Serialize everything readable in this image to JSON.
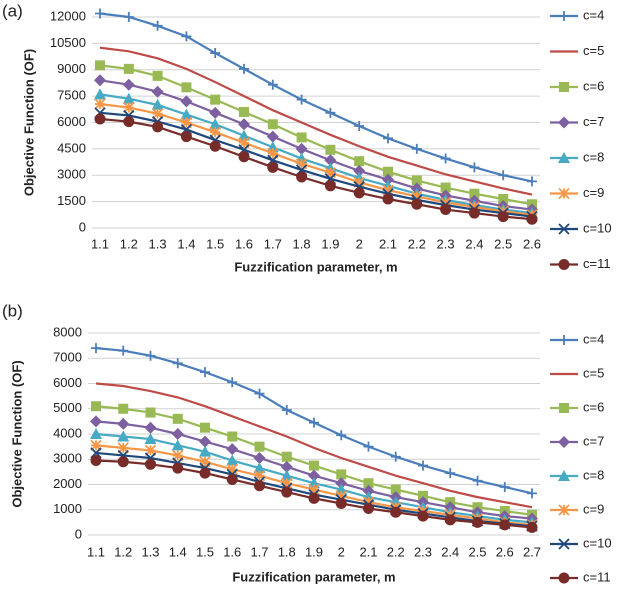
{
  "chart_data": [
    {
      "type": "line",
      "label": "(a)",
      "x_label": "Fuzzification parameter, m",
      "y_label": "Objective Function (OF)",
      "categories": [
        "1.1",
        "1.2",
        "1.3",
        "1.4",
        "1.5",
        "1.6",
        "1.7",
        "1.8",
        "1.9",
        "2",
        "2.1",
        "2.2",
        "2.3",
        "2.4",
        "2.5",
        "2.6"
      ],
      "ylim": [
        0,
        12000
      ],
      "yticks": [
        0,
        1500,
        3000,
        4500,
        6000,
        7500,
        9000,
        10500,
        12000
      ],
      "grid": true,
      "legend": "right",
      "series": [
        {
          "name": "c=4",
          "color": "#4a7ebb",
          "marker": "plus",
          "values": [
            12200,
            12000,
            11500,
            10900,
            9950,
            9050,
            8150,
            7300,
            6550,
            5800,
            5100,
            4500,
            3950,
            3450,
            3000,
            2650
          ]
        },
        {
          "name": "c=5",
          "color": "#be4b48",
          "marker": "none",
          "values": [
            10250,
            10050,
            9650,
            9050,
            8300,
            7500,
            6700,
            6000,
            5300,
            4650,
            4050,
            3550,
            3050,
            2650,
            2250,
            1900
          ]
        },
        {
          "name": "c=6",
          "color": "#98b954",
          "marker": "square",
          "values": [
            9250,
            9050,
            8650,
            8000,
            7300,
            6600,
            5900,
            5150,
            4450,
            3800,
            3200,
            2700,
            2300,
            1950,
            1650,
            1350
          ]
        },
        {
          "name": "c=7",
          "color": "#7d60a0",
          "marker": "diamond",
          "values": [
            8400,
            8150,
            7750,
            7200,
            6550,
            5900,
            5200,
            4500,
            3850,
            3250,
            2750,
            2250,
            1850,
            1550,
            1250,
            1050
          ]
        },
        {
          "name": "c=8",
          "color": "#46aac5",
          "marker": "triangle",
          "values": [
            7600,
            7350,
            7000,
            6450,
            5900,
            5250,
            4600,
            3950,
            3400,
            2850,
            2400,
            1950,
            1600,
            1300,
            1050,
            850
          ]
        },
        {
          "name": "c=9",
          "color": "#f79646",
          "marker": "asterisk",
          "values": [
            7050,
            6850,
            6500,
            6000,
            5450,
            4850,
            4250,
            3650,
            3150,
            2600,
            2150,
            1800,
            1450,
            1200,
            950,
            750
          ]
        },
        {
          "name": "c=10",
          "color": "#1f497d",
          "marker": "x",
          "values": [
            6550,
            6400,
            6050,
            5600,
            5000,
            4450,
            3850,
            3300,
            2800,
            2350,
            1950,
            1600,
            1300,
            1050,
            850,
            650
          ]
        },
        {
          "name": "c=11",
          "color": "#772c2a",
          "marker": "circle",
          "values": [
            6200,
            6050,
            5750,
            5200,
            4650,
            4050,
            3450,
            2900,
            2400,
            2000,
            1650,
            1350,
            1050,
            850,
            650,
            500
          ]
        }
      ]
    },
    {
      "type": "line",
      "label": "(b)",
      "x_label": "Fuzzification parameter, m",
      "y_label": "Objective Function (OF)",
      "categories": [
        "1.1",
        "1.2",
        "1.3",
        "1.4",
        "1.5",
        "1.6",
        "1.7",
        "1.8",
        "1.9",
        "2",
        "2.1",
        "2.2",
        "2.3",
        "2.4",
        "2.5",
        "2.6",
        "2.7"
      ],
      "ylim": [
        0,
        8000
      ],
      "yticks": [
        0,
        1000,
        2000,
        3000,
        4000,
        5000,
        6000,
        7000,
        8000
      ],
      "grid": true,
      "legend": "right",
      "series": [
        {
          "name": "c=4",
          "color": "#4a7ebb",
          "marker": "plus",
          "values": [
            7400,
            7300,
            7100,
            6800,
            6450,
            6050,
            5600,
            4950,
            4450,
            3950,
            3500,
            3100,
            2750,
            2450,
            2150,
            1900,
            1650
          ]
        },
        {
          "name": "c=5",
          "color": "#be4b48",
          "marker": "none",
          "values": [
            6000,
            5900,
            5700,
            5450,
            5100,
            4700,
            4300,
            3900,
            3450,
            3050,
            2700,
            2350,
            2050,
            1750,
            1500,
            1300,
            1100
          ]
        },
        {
          "name": "c=6",
          "color": "#98b954",
          "marker": "square",
          "values": [
            5100,
            5000,
            4850,
            4600,
            4250,
            3900,
            3500,
            3100,
            2750,
            2400,
            2050,
            1800,
            1550,
            1300,
            1100,
            950,
            800
          ]
        },
        {
          "name": "c=7",
          "color": "#7d60a0",
          "marker": "diamond",
          "values": [
            4500,
            4400,
            4250,
            4000,
            3700,
            3400,
            3050,
            2700,
            2350,
            2050,
            1750,
            1500,
            1300,
            1100,
            900,
            750,
            650
          ]
        },
        {
          "name": "c=8",
          "color": "#46aac5",
          "marker": "triangle",
          "values": [
            4000,
            3900,
            3800,
            3550,
            3300,
            2950,
            2650,
            2350,
            2050,
            1800,
            1500,
            1300,
            1100,
            900,
            750,
            600,
            500
          ]
        },
        {
          "name": "c=9",
          "color": "#f79646",
          "marker": "asterisk",
          "values": [
            3550,
            3450,
            3350,
            3150,
            2900,
            2600,
            2350,
            2050,
            1800,
            1550,
            1300,
            1100,
            950,
            800,
            650,
            500,
            400
          ]
        },
        {
          "name": "c=10",
          "color": "#1f497d",
          "marker": "x",
          "values": [
            3250,
            3150,
            3050,
            2850,
            2650,
            2400,
            2100,
            1850,
            1600,
            1400,
            1200,
            1000,
            850,
            700,
            550,
            450,
            350
          ]
        },
        {
          "name": "c=11",
          "color": "#772c2a",
          "marker": "circle",
          "values": [
            2950,
            2900,
            2800,
            2650,
            2450,
            2200,
            1950,
            1700,
            1450,
            1250,
            1050,
            900,
            750,
            600,
            500,
            400,
            300
          ]
        }
      ]
    }
  ]
}
